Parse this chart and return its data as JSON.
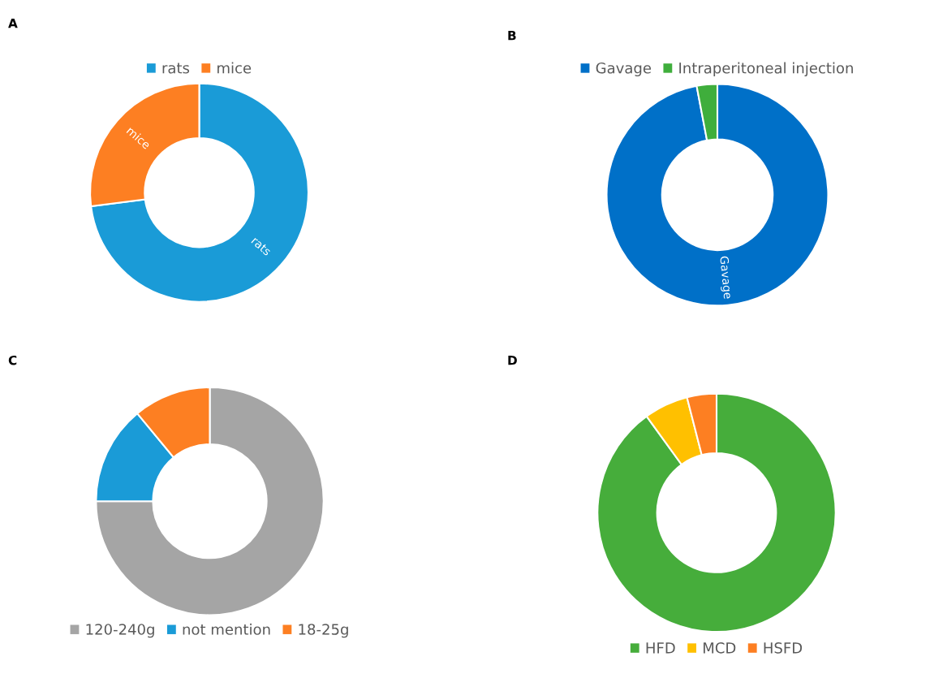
{
  "chart_data": [
    {
      "type": "donut",
      "title": "A",
      "categories": [
        "rats",
        "mice"
      ],
      "values": [
        73,
        27
      ],
      "colors": [
        "#1a9bd7",
        "#fd7f22"
      ],
      "legend": "top",
      "annotations": [
        {
          "text": "rats",
          "x": "rats"
        },
        {
          "text": "mice",
          "x": "mice"
        }
      ]
    },
    {
      "type": "donut",
      "title": "B",
      "categories": [
        "Gavage",
        "Intraperitoneal injection"
      ],
      "values": [
        97,
        3
      ],
      "colors": [
        "#0070c8",
        "#3fae3c"
      ],
      "legend": "top",
      "annotations": [
        {
          "text": "Gavage",
          "x": "Gavage"
        }
      ]
    },
    {
      "type": "donut",
      "title": "C",
      "categories": [
        "120-240g",
        "not mention",
        "18-25g"
      ],
      "values": [
        75,
        14,
        11
      ],
      "colors": [
        "#a5a5a5",
        "#1a9bd7",
        "#fd7f22"
      ],
      "legend": "bottom"
    },
    {
      "type": "donut",
      "title": "D",
      "categories": [
        "HFD",
        "MCD",
        "HSFD"
      ],
      "values": [
        90,
        6,
        4
      ],
      "colors": [
        "#46ad3b",
        "#ffc000",
        "#fd7f22"
      ],
      "legend": "bottom"
    }
  ]
}
